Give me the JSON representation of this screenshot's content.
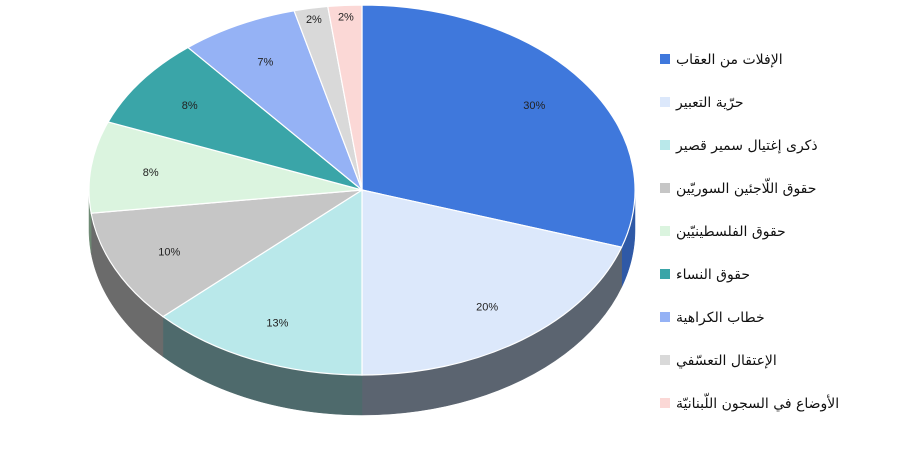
{
  "chart_data": {
    "type": "pie",
    "title": "",
    "legend_position": "right",
    "slices": [
      {
        "label": "الإفلات من العقاب",
        "value": 30,
        "display": "30%",
        "color": "#3f78dc",
        "side": "#2f59a6"
      },
      {
        "label": "حرّية التعبير",
        "value": 20,
        "display": "20%",
        "color": "#dce8fb",
        "side": "#5b6470"
      },
      {
        "label": "ذكرى إغتيال سمير قصير",
        "value": 13,
        "display": "13%",
        "color": "#b9e8ea",
        "side": "#4e6a6c"
      },
      {
        "label": "حقوق اللّاجئين السوريّين",
        "value": 10,
        "display": "10%",
        "color": "#c6c6c6",
        "side": "#6b6b6b"
      },
      {
        "label": "حقوق الفلسطينيّين",
        "value": 8,
        "display": "8%",
        "color": "#dbf4df",
        "side": "#6f8a74"
      },
      {
        "label": "حقوق النساء",
        "value": 8,
        "display": "8%",
        "color": "#3aa5a8",
        "side": "#236669"
      },
      {
        "label": "خطاب الكراهية",
        "value": 7,
        "display": "7%",
        "color": "#95b2f5",
        "side": "#5a6c99"
      },
      {
        "label": "الإعتقال التعسّفي",
        "value": 2,
        "display": "2%",
        "color": "#d9d9d9",
        "side": "#7a7a7a"
      },
      {
        "label": "الأوضاع في السجون اللّبنانيّة",
        "value": 2,
        "display": "2%",
        "color": "#fbd8d6",
        "side": "#9a7a78"
      }
    ]
  }
}
